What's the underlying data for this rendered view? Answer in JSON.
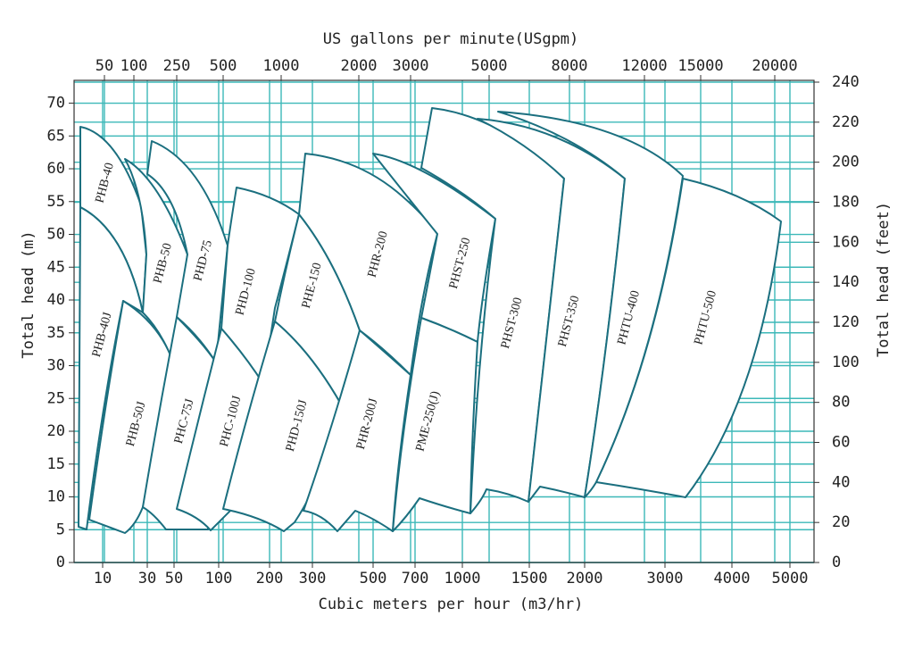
{
  "chart_data": {
    "type": "region",
    "title": "US gallons per minute(USgpm)",
    "xlabel": "Cubic meters per hour (m3/hr)",
    "ylabel": "Total head (m)",
    "y2label": "Total head (feet)",
    "xticks": [
      10,
      30,
      50,
      100,
      200,
      300,
      500,
      700,
      1000,
      1500,
      2000,
      3000,
      4000,
      5000
    ],
    "x2ticks": [
      50,
      100,
      250,
      500,
      1000,
      2000,
      3000,
      5000,
      8000,
      12000,
      15000,
      20000
    ],
    "ylim": [
      0,
      73.2
    ],
    "yticks": [
      0,
      5,
      10,
      15,
      20,
      25,
      30,
      35,
      40,
      45,
      50,
      55,
      60,
      65,
      70
    ],
    "y2lim": [
      0,
      240
    ],
    "y2ticks": [
      0,
      20,
      40,
      60,
      80,
      100,
      120,
      140,
      160,
      180,
      200,
      220,
      240
    ],
    "grid": true,
    "color": "#1b6f7f",
    "grid_color": "#3cb8b8",
    "regions": [
      {
        "name": "PHB-40"
      },
      {
        "name": "PHB-40J"
      },
      {
        "name": "PHB-50J"
      },
      {
        "name": "PHB-50"
      },
      {
        "name": "PHD-75"
      },
      {
        "name": "PHC-75J"
      },
      {
        "name": "PHD-100"
      },
      {
        "name": "PHC-100J"
      },
      {
        "name": "PHE-150"
      },
      {
        "name": "PHD-150J"
      },
      {
        "name": "PHR-200"
      },
      {
        "name": "PHR-200J"
      },
      {
        "name": "PHST-250"
      },
      {
        "name": "PME-250(J)"
      },
      {
        "name": "PHST-300"
      },
      {
        "name": "PHST-350"
      },
      {
        "name": "PHTU-400"
      },
      {
        "name": "PHTU-500"
      }
    ]
  }
}
